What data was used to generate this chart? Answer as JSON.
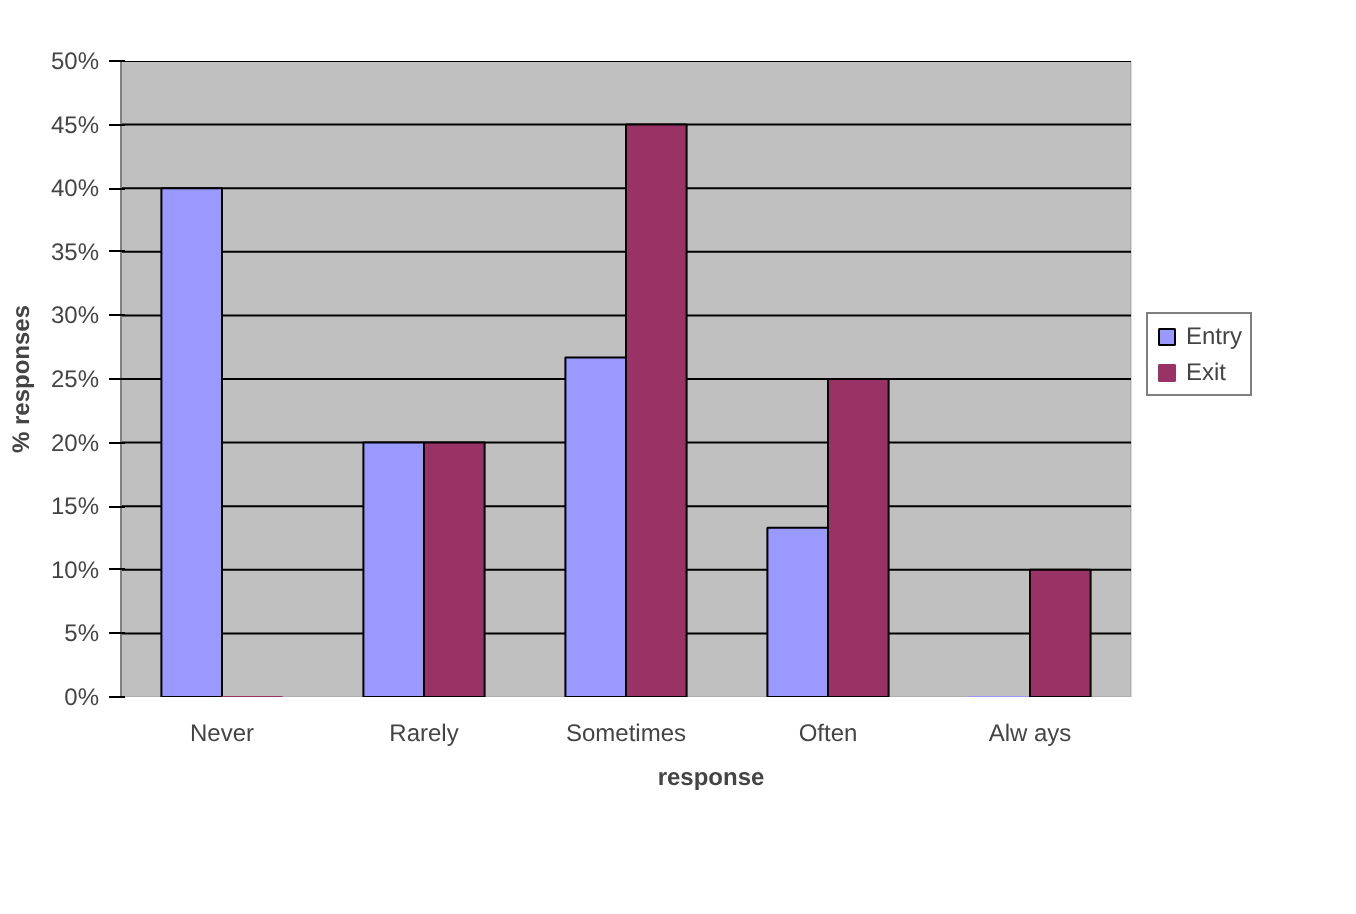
{
  "chart_data": {
    "type": "bar",
    "xlabel": "response",
    "ylabel": "% responses",
    "categories": [
      "Never",
      "Rarely",
      "Sometimes",
      "Often",
      "Alw ays"
    ],
    "series": [
      {
        "name": "Entry",
        "color": "#9999ff",
        "values": [
          40,
          20,
          26.7,
          13.3,
          0
        ]
      },
      {
        "name": "Exit",
        "color": "#993366",
        "values": [
          0,
          20,
          45,
          25,
          10
        ]
      }
    ],
    "ylim": [
      0,
      50
    ],
    "yticks": [
      {
        "value": 0,
        "label": "0%"
      },
      {
        "value": 5,
        "label": "5%"
      },
      {
        "value": 10,
        "label": "10%"
      },
      {
        "value": 15,
        "label": "15%"
      },
      {
        "value": 20,
        "label": "20%"
      },
      {
        "value": 25,
        "label": "25%"
      },
      {
        "value": 30,
        "label": "30%"
      },
      {
        "value": 35,
        "label": "35%"
      },
      {
        "value": 40,
        "label": "40%"
      },
      {
        "value": 45,
        "label": "45%"
      },
      {
        "value": 50,
        "label": "50%"
      }
    ],
    "grid": "y",
    "legend": "right"
  }
}
